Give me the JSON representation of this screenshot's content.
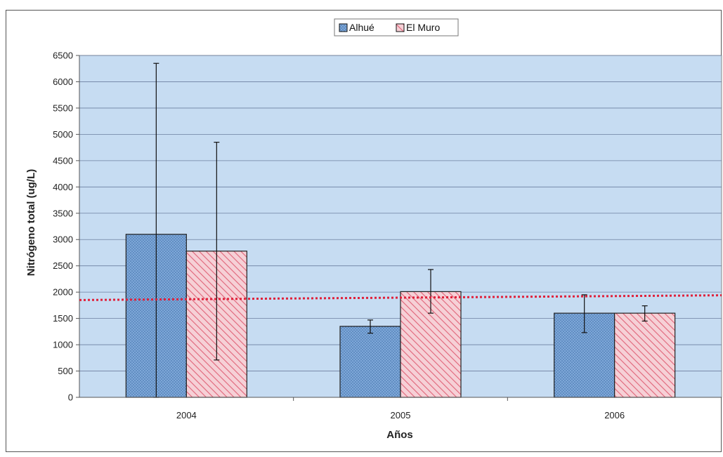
{
  "chart_data": {
    "type": "bar",
    "title": "",
    "xlabel": "Años",
    "ylabel": "Nitrógeno total (ug/L)",
    "categories": [
      "2004",
      "2005",
      "2006"
    ],
    "ylim": [
      0,
      6500
    ],
    "yticks": [
      0,
      500,
      1000,
      1500,
      2000,
      2500,
      3000,
      3500,
      4000,
      4500,
      5000,
      5500,
      6000,
      6500
    ],
    "grid": true,
    "legend_position": "top",
    "reference_line": {
      "value_left": 1850,
      "value_right": 1940,
      "style": "dotted",
      "color": "#e0203a"
    },
    "series": [
      {
        "name": "Alhué",
        "values": [
          3100,
          1350,
          1600
        ],
        "error_low": [
          0,
          1220,
          1230
        ],
        "error_high": [
          6350,
          1470,
          1950
        ],
        "color": "#7ea7d8",
        "pattern": "dots"
      },
      {
        "name": "El Muro",
        "values": [
          2780,
          2010,
          1600
        ],
        "error_low": [
          710,
          1600,
          1450
        ],
        "error_high": [
          4850,
          2430,
          1740
        ],
        "color": "#f3b4bf",
        "pattern": "hatch"
      }
    ],
    "plot_background": "#c6dcf2"
  }
}
